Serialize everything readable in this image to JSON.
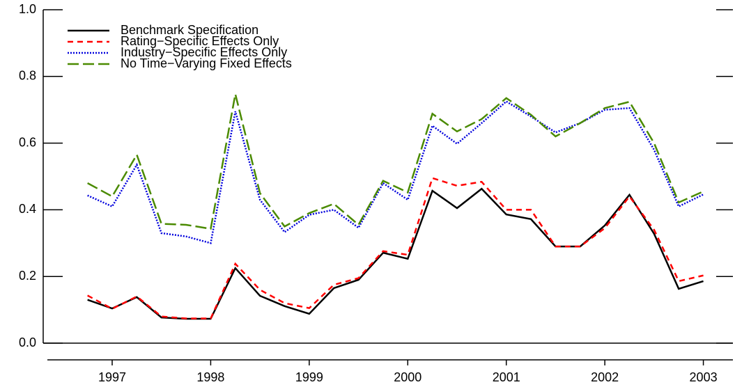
{
  "chart_data": {
    "type": "line",
    "x": [
      1997.25,
      1997.5,
      1997.75,
      1998,
      1998.25,
      1998.5,
      1998.75,
      1999,
      1999.25,
      1999.5,
      1999.75,
      2000,
      2000.25,
      2000.5,
      2000.75,
      2001,
      2001.25,
      2001.5,
      2001.75,
      2002,
      2002.25,
      2002.5,
      2002.75,
      2003,
      2003.25,
      2003.5
    ],
    "series": [
      {
        "name": "Benchmark Specification",
        "color": "#000000",
        "dash": "none",
        "values": [
          0.13,
          0.104,
          0.138,
          0.077,
          0.073,
          0.073,
          0.225,
          0.142,
          0.111,
          0.088,
          0.165,
          0.19,
          0.271,
          0.253,
          0.457,
          0.405,
          0.463,
          0.386,
          0.372,
          0.29,
          0.29,
          0.353,
          0.445,
          0.328,
          0.163,
          0.186
        ]
      },
      {
        "name": "Rating−Specific Effects Only",
        "color": "#ff0000",
        "dash": "8 6",
        "values": [
          0.143,
          0.103,
          0.14,
          0.08,
          0.074,
          0.074,
          0.238,
          0.16,
          0.12,
          0.105,
          0.175,
          0.195,
          0.276,
          0.265,
          0.495,
          0.472,
          0.484,
          0.4,
          0.4,
          0.29,
          0.29,
          0.345,
          0.44,
          0.34,
          0.186,
          0.203
        ]
      },
      {
        "name": "Industry−Specific Effects Only",
        "color": "#0000dd",
        "dash": "2 2",
        "values": [
          0.443,
          0.41,
          0.535,
          0.33,
          0.32,
          0.3,
          0.695,
          0.43,
          0.333,
          0.385,
          0.4,
          0.346,
          0.48,
          0.43,
          0.652,
          0.598,
          0.66,
          0.725,
          0.68,
          0.632,
          0.66,
          0.7,
          0.705,
          0.58,
          0.41,
          0.446
        ]
      },
      {
        "name": "No Time−Varying Fixed Effects",
        "color": "#4a8a00",
        "dash": "16 6",
        "values": [
          0.48,
          0.44,
          0.565,
          0.358,
          0.355,
          0.343,
          0.747,
          0.45,
          0.35,
          0.39,
          0.418,
          0.355,
          0.487,
          0.452,
          0.688,
          0.635,
          0.672,
          0.735,
          0.685,
          0.62,
          0.66,
          0.705,
          0.724,
          0.6,
          0.422,
          0.455
        ]
      }
    ],
    "xlim": [
      1996.8,
      2003.8
    ],
    "xticks": [
      {
        "value": 1997.5,
        "label": "1997"
      },
      {
        "value": 1998.5,
        "label": "1998"
      },
      {
        "value": 1999.5,
        "label": "1999"
      },
      {
        "value": 2000.5,
        "label": "2000"
      },
      {
        "value": 2001.5,
        "label": "2001"
      },
      {
        "value": 2002.5,
        "label": "2002"
      },
      {
        "value": 2003.5,
        "label": "2003"
      }
    ],
    "ylim": [
      0,
      1
    ],
    "yticks": [
      {
        "value": 0,
        "label": "0.0"
      },
      {
        "value": 0.2,
        "label": "0.2"
      },
      {
        "value": 0.4,
        "label": "0.4"
      },
      {
        "value": 0.6,
        "label": "0.6"
      },
      {
        "value": 0.8,
        "label": "0.8"
      },
      {
        "value": 1,
        "label": "1.0"
      }
    ],
    "legend": "top-left"
  }
}
